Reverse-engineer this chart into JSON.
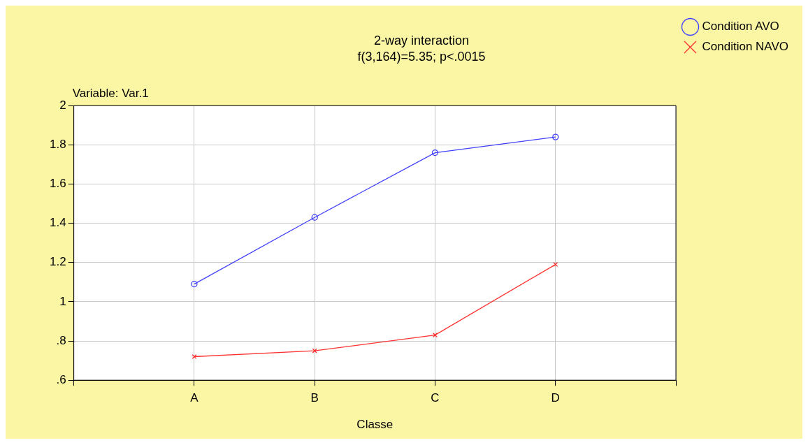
{
  "chart_data": {
    "type": "line",
    "title": "2-way interaction",
    "subtitle": "f(3,164)=5.35; p<.0015",
    "xlabel": "Classe",
    "annotations": [
      "Variable: Var.1"
    ],
    "categories": [
      null,
      "A",
      "B",
      "C",
      "D",
      null
    ],
    "series": [
      {
        "name": "Condition AVO",
        "color": "#4040ff",
        "marker": "circle",
        "values": [
          null,
          1.09,
          1.43,
          1.76,
          1.84,
          null
        ]
      },
      {
        "name": "Condition NAVO",
        "color": "#ff3030",
        "marker": "cross",
        "values": [
          null,
          0.72,
          0.75,
          0.83,
          1.19,
          null
        ]
      }
    ],
    "ylim": [
      0.6,
      2
    ],
    "yticks": [
      {
        "value": 0.6,
        "label": ".6"
      },
      {
        "value": 0.8,
        "label": ".8"
      },
      1,
      1.2,
      1.4,
      1.6,
      1.8,
      2
    ],
    "grid": true,
    "legend": "top right",
    "line_style": "solid"
  }
}
